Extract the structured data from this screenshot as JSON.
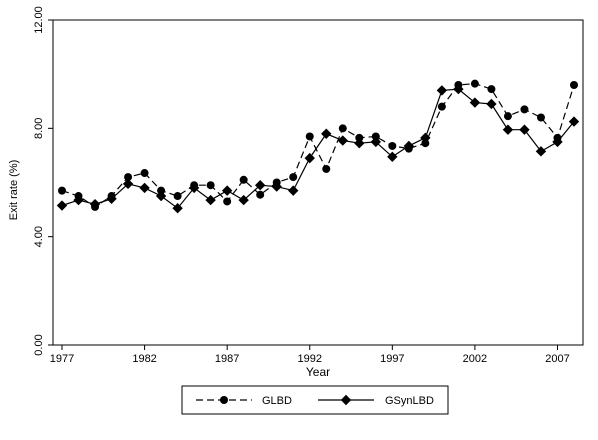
{
  "chart_data": {
    "type": "line",
    "title": "",
    "xlabel": "Year",
    "ylabel": "Exit rate (%)",
    "xlim": [
      1977,
      2008
    ],
    "ylim": [
      0,
      12
    ],
    "x_ticks": [
      1977,
      1982,
      1987,
      1992,
      1997,
      2002,
      2007
    ],
    "y_ticks": [
      0,
      4,
      8,
      12
    ],
    "y_tick_labels": [
      "0.00",
      "4.00",
      "8.00",
      "12.00"
    ],
    "grid": false,
    "legend_position": "bottom-center",
    "x": [
      1977,
      1978,
      1979,
      1980,
      1981,
      1982,
      1983,
      1984,
      1985,
      1986,
      1987,
      1988,
      1989,
      1990,
      1991,
      1992,
      1993,
      1994,
      1995,
      1996,
      1997,
      1998,
      1999,
      2000,
      2001,
      2002,
      2003,
      2004,
      2005,
      2006,
      2007,
      2008
    ],
    "series": [
      {
        "name": "GLBD",
        "style": "dashed",
        "marker": "circle",
        "color": "#000000",
        "values": [
          5.7,
          5.5,
          5.1,
          5.5,
          6.2,
          6.35,
          5.7,
          5.5,
          5.9,
          5.9,
          5.3,
          6.1,
          5.55,
          6.0,
          6.2,
          7.7,
          6.5,
          8.0,
          7.65,
          7.7,
          7.35,
          7.25,
          7.45,
          8.8,
          9.6,
          9.65,
          9.45,
          8.45,
          8.7,
          8.4,
          7.65,
          9.6
        ]
      },
      {
        "name": "GSynLBD",
        "style": "solid",
        "marker": "diamond",
        "color": "#000000",
        "values": [
          5.15,
          5.35,
          5.2,
          5.4,
          5.95,
          5.8,
          5.5,
          5.05,
          5.8,
          5.35,
          5.7,
          5.35,
          5.9,
          5.85,
          5.7,
          6.9,
          7.8,
          7.55,
          7.45,
          7.5,
          6.95,
          7.35,
          7.65,
          9.4,
          9.45,
          8.95,
          8.9,
          7.95,
          7.95,
          7.15,
          7.5,
          8.25
        ]
      }
    ]
  }
}
